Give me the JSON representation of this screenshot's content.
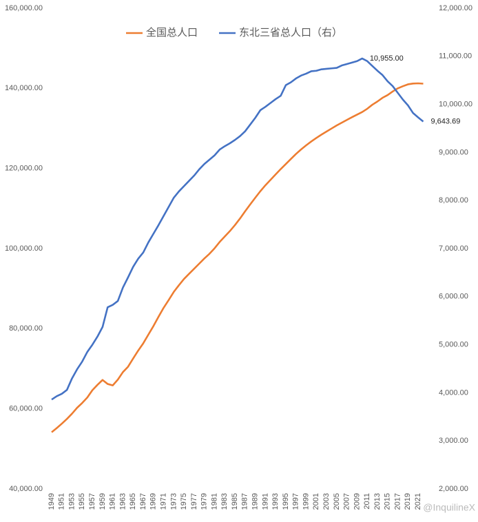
{
  "chart_data": {
    "type": "line",
    "x": [
      1949,
      1950,
      1951,
      1952,
      1953,
      1954,
      1955,
      1956,
      1957,
      1958,
      1959,
      1960,
      1961,
      1962,
      1963,
      1964,
      1965,
      1966,
      1967,
      1968,
      1969,
      1970,
      1971,
      1972,
      1973,
      1974,
      1975,
      1976,
      1977,
      1978,
      1979,
      1980,
      1981,
      1982,
      1983,
      1984,
      1985,
      1986,
      1987,
      1988,
      1989,
      1990,
      1991,
      1992,
      1993,
      1994,
      1995,
      1996,
      1997,
      1998,
      1999,
      2000,
      2001,
      2002,
      2003,
      2004,
      2005,
      2006,
      2007,
      2008,
      2009,
      2010,
      2011,
      2012,
      2013,
      2014,
      2015,
      2016,
      2017,
      2018,
      2019,
      2020,
      2021,
      2022
    ],
    "xlim": [
      1949,
      2022
    ],
    "xticks": [
      1949,
      1951,
      1953,
      1955,
      1957,
      1959,
      1961,
      1963,
      1965,
      1967,
      1969,
      1971,
      1973,
      1975,
      1977,
      1979,
      1981,
      1983,
      1985,
      1987,
      1989,
      1991,
      1993,
      1995,
      1997,
      1999,
      2001,
      2003,
      2005,
      2007,
      2009,
      2011,
      2013,
      2015,
      2017,
      2019,
      2021
    ],
    "ylim": [
      40000,
      160000
    ],
    "yticks": [
      {
        "value": 40000,
        "label": "40,000.00"
      },
      {
        "value": 60000,
        "label": "60,000.00"
      },
      {
        "value": 80000,
        "label": "80,000.00"
      },
      {
        "value": 100000,
        "label": "100,000.00"
      },
      {
        "value": 120000,
        "label": "120,000.00"
      },
      {
        "value": 140000,
        "label": "140,000.00"
      },
      {
        "value": 160000,
        "label": "160,000.00"
      }
    ],
    "y2lim": [
      2000,
      12000
    ],
    "y2ticks": [
      {
        "value": 2000,
        "label": "2,000.00"
      },
      {
        "value": 3000,
        "label": "3,000.00"
      },
      {
        "value": 4000,
        "label": "4,000.00"
      },
      {
        "value": 5000,
        "label": "5,000.00"
      },
      {
        "value": 6000,
        "label": "6,000.00"
      },
      {
        "value": 7000,
        "label": "7,000.00"
      },
      {
        "value": 8000,
        "label": "8,000.00"
      },
      {
        "value": 9000,
        "label": "9,000.00"
      },
      {
        "value": 10000,
        "label": "10,000.00"
      },
      {
        "value": 11000,
        "label": "11,000.00"
      },
      {
        "value": 12000,
        "label": "12,000.00"
      }
    ],
    "legend": "top",
    "series": [
      {
        "name": "全国总人口",
        "color": "#ed7d31",
        "values": [
          54167,
          55196,
          56300,
          57482,
          58796,
          60266,
          61465,
          62828,
          64653,
          65994,
          67207,
          66207,
          65859,
          67295,
          69172,
          70499,
          72538,
          74542,
          76368,
          78534,
          80671,
          82992,
          85229,
          87177,
          89211,
          90859,
          92420,
          93717,
          94974,
          96259,
          97542,
          98705,
          100072,
          101654,
          103008,
          104357,
          105851,
          107507,
          109300,
          111026,
          112704,
          114333,
          115823,
          117171,
          118517,
          119850,
          121121,
          122389,
          123626,
          124761,
          125786,
          126743,
          127627,
          128453,
          129227,
          129988,
          130756,
          131448,
          132129,
          132802,
          133450,
          134091,
          134916,
          135922,
          136726,
          137646,
          138326,
          139232,
          140011,
          140541,
          141008,
          141212,
          141260,
          141175
        ]
      },
      {
        "name": "东北三省总人口（右）",
        "color": "#4472c4",
        "axis": "y2",
        "values": [
          3860,
          3930,
          3980,
          4060,
          4300,
          4490,
          4650,
          4850,
          5000,
          5170,
          5370,
          5780,
          5830,
          5910,
          6190,
          6400,
          6620,
          6790,
          6920,
          7130,
          7310,
          7490,
          7680,
          7870,
          8060,
          8190,
          8300,
          8410,
          8520,
          8650,
          8760,
          8850,
          8940,
          9060,
          9130,
          9190,
          9260,
          9340,
          9440,
          9580,
          9720,
          9880,
          9950,
          10030,
          10110,
          10180,
          10400,
          10460,
          10540,
          10600,
          10640,
          10690,
          10700,
          10730,
          10740,
          10750,
          10760,
          10810,
          10840,
          10870,
          10900,
          10955,
          10900,
          10800,
          10700,
          10610,
          10480,
          10380,
          10240,
          10100,
          9980,
          9820,
          9730,
          9643.69
        ],
        "value_labels": [
          null,
          null,
          null,
          null,
          null,
          null,
          null,
          null,
          null,
          null,
          null,
          null,
          null,
          null,
          null,
          null,
          null,
          null,
          null,
          null,
          null,
          null,
          null,
          null,
          null,
          null,
          null,
          null,
          null,
          null,
          null,
          null,
          null,
          null,
          null,
          null,
          null,
          null,
          null,
          null,
          null,
          null,
          null,
          null,
          null,
          null,
          null,
          null,
          null,
          null,
          null,
          null,
          null,
          null,
          null,
          null,
          null,
          null,
          null,
          null,
          null,
          "10,955.00",
          null,
          null,
          null,
          null,
          null,
          null,
          null,
          null,
          null,
          null,
          null,
          "9,643.69"
        ]
      }
    ],
    "watermark": "@InquilineX"
  }
}
